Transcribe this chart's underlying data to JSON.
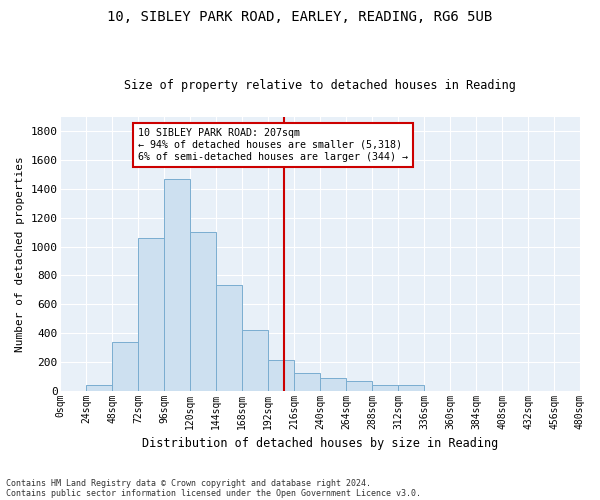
{
  "title1": "10, SIBLEY PARK ROAD, EARLEY, READING, RG6 5UB",
  "title2": "Size of property relative to detached houses in Reading",
  "xlabel": "Distribution of detached houses by size in Reading",
  "ylabel": "Number of detached properties",
  "footnote1": "Contains HM Land Registry data © Crown copyright and database right 2024.",
  "footnote2": "Contains public sector information licensed under the Open Government Licence v3.0.",
  "annotation_line1": "10 SIBLEY PARK ROAD: 207sqm",
  "annotation_line2": "← 94% of detached houses are smaller (5,318)",
  "annotation_line3": "6% of semi-detached houses are larger (344) →",
  "property_size": 207,
  "bin_width": 24,
  "bar_values": [
    0,
    40,
    340,
    1060,
    1470,
    1100,
    730,
    420,
    210,
    120,
    90,
    70,
    40,
    40,
    0,
    0,
    0,
    0,
    0,
    0
  ],
  "bar_color": "#cde0f0",
  "bar_edge_color": "#7aadd0",
  "vline_color": "#cc0000",
  "vline_x": 207,
  "bg_color": "#ffffff",
  "plot_bg_color": "#e8f0f8",
  "grid_color": "#ffffff",
  "annotation_box_color": "#cc0000",
  "ylim": [
    0,
    1900
  ],
  "xlim": [
    0,
    480
  ],
  "yticks": [
    0,
    200,
    400,
    600,
    800,
    1000,
    1200,
    1400,
    1600,
    1800
  ],
  "xtick_labels": [
    "0sqm",
    "24sqm",
    "48sqm",
    "72sqm",
    "96sqm",
    "120sqm",
    "144sqm",
    "168sqm",
    "192sqm",
    "216sqm",
    "240sqm",
    "264sqm",
    "288sqm",
    "312sqm",
    "336sqm",
    "360sqm",
    "384sqm",
    "408sqm",
    "432sqm",
    "456sqm",
    "480sqm"
  ]
}
